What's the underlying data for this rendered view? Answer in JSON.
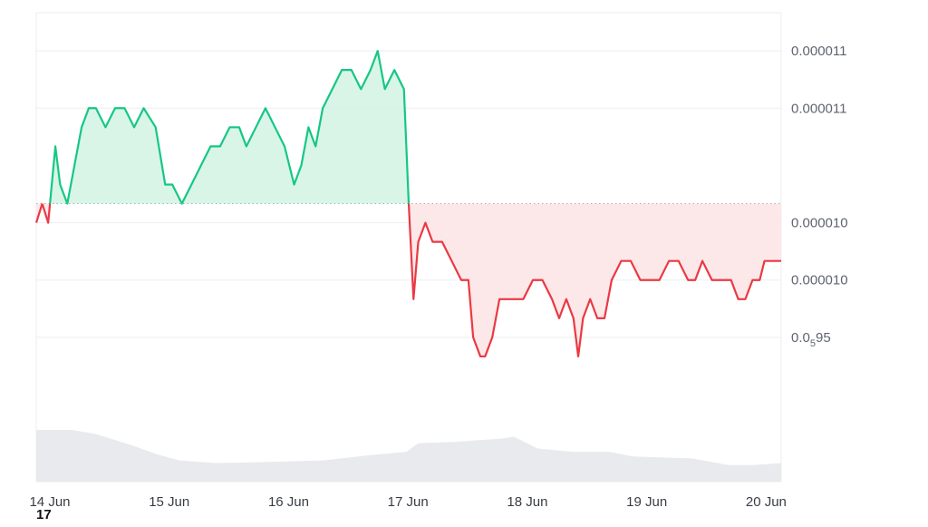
{
  "chart_data": {
    "type": "area",
    "baseline": 1.03e-05,
    "y_ticks": [
      {
        "value": 1.11e-05,
        "label": "0.000011",
        "sub": ""
      },
      {
        "value": 1.08e-05,
        "label": "0.000011",
        "sub": ""
      },
      {
        "value": 1.02e-05,
        "label": "0.000010",
        "sub": ""
      },
      {
        "value": 9.9e-06,
        "label": "0.000010",
        "sub": ""
      },
      {
        "value": 9.6e-06,
        "label": "0.0",
        "sub": "5",
        "suffix": "95"
      }
    ],
    "x_ticks": [
      "14 Jun",
      "15 Jun",
      "16 Jun",
      "17 Jun",
      "18 Jun",
      "19 Jun",
      "20 Jun"
    ],
    "x_tick_days": [
      0,
      1,
      2,
      3,
      4,
      5,
      6
    ],
    "corner_label": "17",
    "colors": {
      "up": "#16c784",
      "down": "#ea3943",
      "up_fill": "#d4f4e6",
      "down_fill": "#fde6e7",
      "volume": "#e8eaee",
      "grid": "#eceef2"
    },
    "price_points": [
      [
        0.0,
        1.02e-05
      ],
      [
        0.05,
        1.03e-05
      ],
      [
        0.1,
        1.02e-05
      ],
      [
        0.13,
        1.04e-05
      ],
      [
        0.16,
        1.06e-05
      ],
      [
        0.2,
        1.04e-05
      ],
      [
        0.26,
        1.03e-05
      ],
      [
        0.32,
        1.05e-05
      ],
      [
        0.38,
        1.07e-05
      ],
      [
        0.44,
        1.08e-05
      ],
      [
        0.5,
        1.08e-05
      ],
      [
        0.58,
        1.07e-05
      ],
      [
        0.66,
        1.08e-05
      ],
      [
        0.74,
        1.08e-05
      ],
      [
        0.82,
        1.07e-05
      ],
      [
        0.9,
        1.08e-05
      ],
      [
        1.0,
        1.07e-05
      ],
      [
        1.08,
        1.04e-05
      ],
      [
        1.14,
        1.04e-05
      ],
      [
        1.22,
        1.03e-05
      ],
      [
        1.3,
        1.04e-05
      ],
      [
        1.38,
        1.05e-05
      ],
      [
        1.46,
        1.06e-05
      ],
      [
        1.54,
        1.06e-05
      ],
      [
        1.62,
        1.07e-05
      ],
      [
        1.7,
        1.07e-05
      ],
      [
        1.76,
        1.06e-05
      ],
      [
        1.84,
        1.07e-05
      ],
      [
        1.92,
        1.08e-05
      ],
      [
        2.0,
        1.07e-05
      ],
      [
        2.08,
        1.06e-05
      ],
      [
        2.16,
        1.04e-05
      ],
      [
        2.22,
        1.05e-05
      ],
      [
        2.28,
        1.07e-05
      ],
      [
        2.34,
        1.06e-05
      ],
      [
        2.4,
        1.08e-05
      ],
      [
        2.48,
        1.09e-05
      ],
      [
        2.56,
        1.1e-05
      ],
      [
        2.64,
        1.1e-05
      ],
      [
        2.72,
        1.09e-05
      ],
      [
        2.8,
        1.1e-05
      ],
      [
        2.86,
        1.11e-05
      ],
      [
        2.92,
        1.09e-05
      ],
      [
        3.0,
        1.1e-05
      ],
      [
        3.08,
        1.09e-05
      ],
      [
        3.12,
        1.03e-05
      ],
      [
        3.16,
        9.8e-06
      ],
      [
        3.2,
        1.01e-05
      ],
      [
        3.26,
        1.02e-05
      ],
      [
        3.32,
        1.01e-05
      ],
      [
        3.4,
        1.01e-05
      ],
      [
        3.48,
        1e-05
      ],
      [
        3.56,
        9.9e-06
      ],
      [
        3.62,
        9.9e-06
      ],
      [
        3.66,
        9.6e-06
      ],
      [
        3.72,
        9.5e-06
      ],
      [
        3.76,
        9.5e-06
      ],
      [
        3.82,
        9.6e-06
      ],
      [
        3.88,
        9.8e-06
      ],
      [
        3.94,
        9.8e-06
      ],
      [
        4.0,
        9.8e-06
      ],
      [
        4.08,
        9.8e-06
      ],
      [
        4.16,
        9.9e-06
      ],
      [
        4.24,
        9.9e-06
      ],
      [
        4.32,
        9.8e-06
      ],
      [
        4.38,
        9.7e-06
      ],
      [
        4.44,
        9.8e-06
      ],
      [
        4.5,
        9.7e-06
      ],
      [
        4.54,
        9.5e-06
      ],
      [
        4.58,
        9.7e-06
      ],
      [
        4.64,
        9.8e-06
      ],
      [
        4.7,
        9.7e-06
      ],
      [
        4.76,
        9.7e-06
      ],
      [
        4.82,
        9.9e-06
      ],
      [
        4.9,
        1e-05
      ],
      [
        4.98,
        1e-05
      ],
      [
        5.06,
        9.9e-06
      ],
      [
        5.14,
        9.9e-06
      ],
      [
        5.22,
        9.9e-06
      ],
      [
        5.3,
        1e-05
      ],
      [
        5.38,
        1e-05
      ],
      [
        5.46,
        9.9e-06
      ],
      [
        5.52,
        9.9e-06
      ],
      [
        5.58,
        1e-05
      ],
      [
        5.66,
        9.9e-06
      ],
      [
        5.74,
        9.9e-06
      ],
      [
        5.82,
        9.9e-06
      ],
      [
        5.88,
        9.8e-06
      ],
      [
        5.94,
        9.8e-06
      ],
      [
        6.0,
        9.9e-06
      ],
      [
        6.06,
        9.9e-06
      ],
      [
        6.1,
        1e-05
      ],
      [
        6.16,
        1e-05
      ],
      [
        6.2,
        1e-05
      ],
      [
        6.24,
        1e-05
      ]
    ],
    "volume_points": [
      [
        0.0,
        0.78
      ],
      [
        0.3,
        0.78
      ],
      [
        0.5,
        0.72
      ],
      [
        0.8,
        0.55
      ],
      [
        1.0,
        0.42
      ],
      [
        1.2,
        0.32
      ],
      [
        1.5,
        0.28
      ],
      [
        2.0,
        0.3
      ],
      [
        2.4,
        0.32
      ],
      [
        2.8,
        0.4
      ],
      [
        3.1,
        0.45
      ],
      [
        3.2,
        0.58
      ],
      [
        3.5,
        0.6
      ],
      [
        3.9,
        0.65
      ],
      [
        4.0,
        0.68
      ],
      [
        4.2,
        0.5
      ],
      [
        4.5,
        0.45
      ],
      [
        4.8,
        0.45
      ],
      [
        5.0,
        0.38
      ],
      [
        5.5,
        0.35
      ],
      [
        5.8,
        0.25
      ],
      [
        6.0,
        0.25
      ],
      [
        6.24,
        0.28
      ]
    ]
  }
}
